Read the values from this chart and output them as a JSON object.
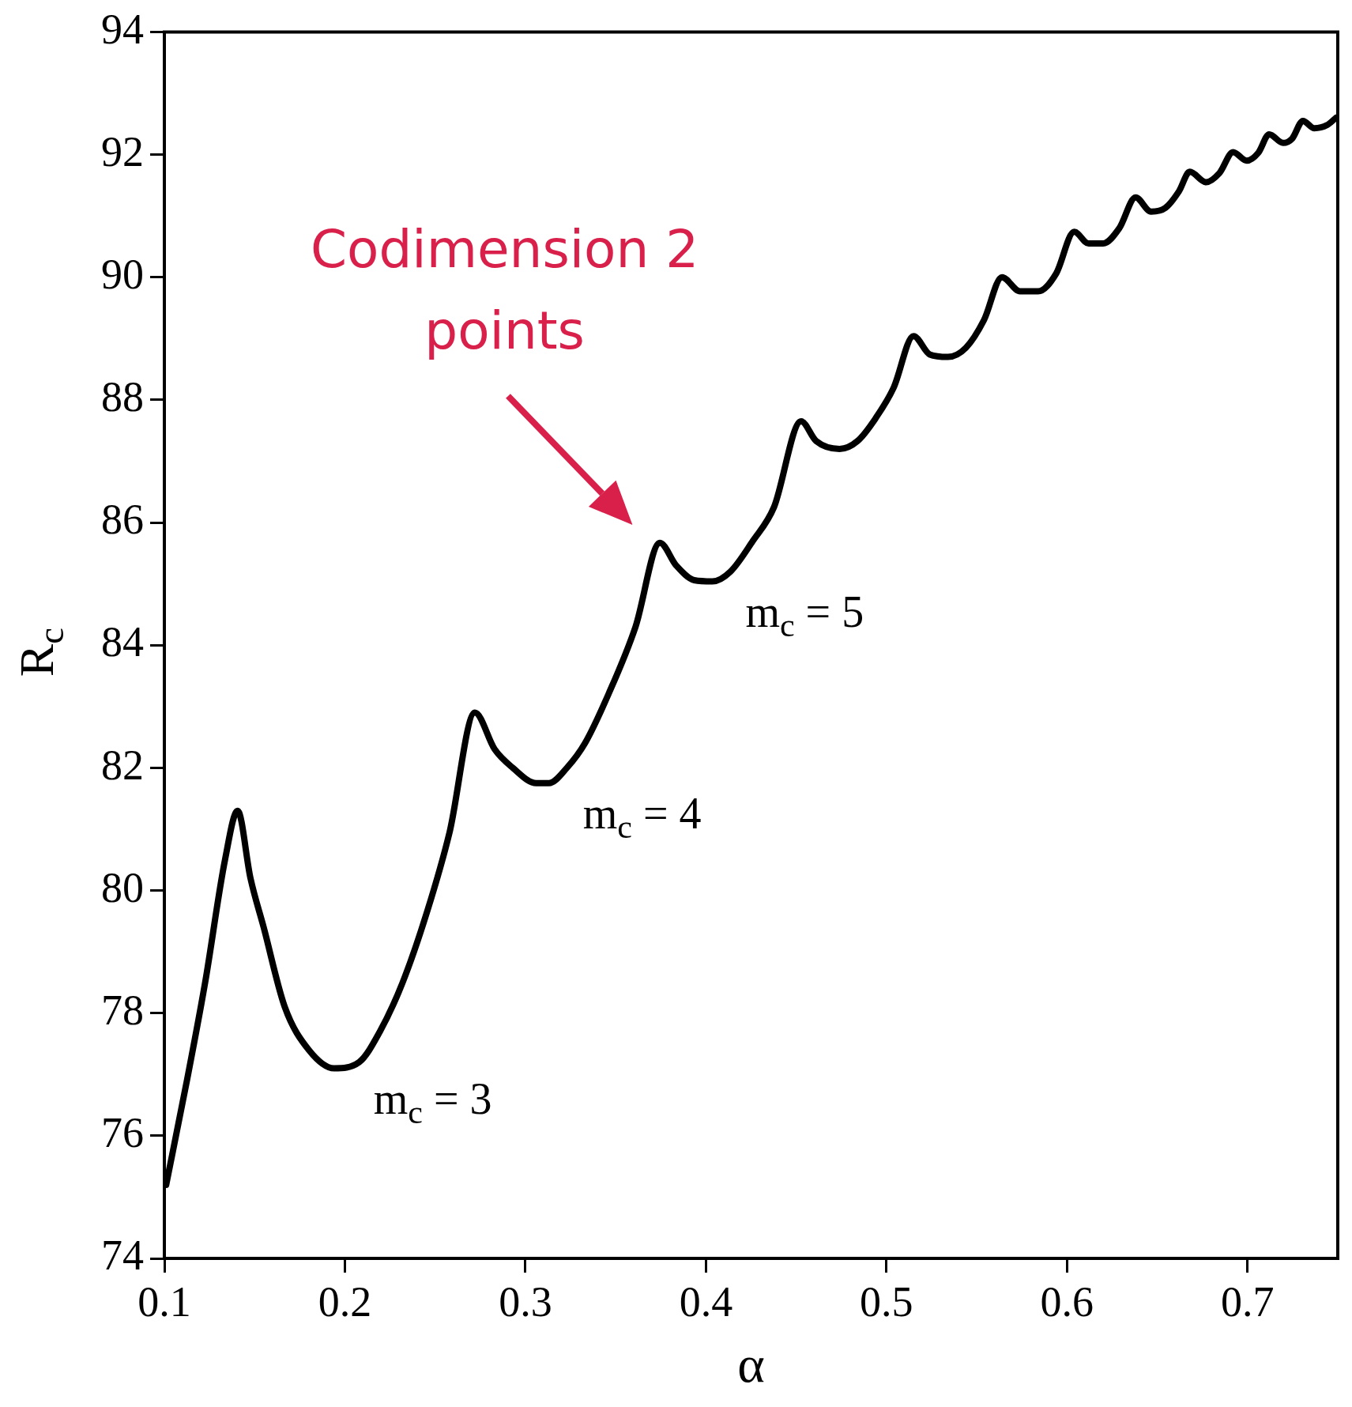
{
  "chart_data": {
    "type": "line",
    "xlabel": "α",
    "ylabel": "R$_{c}$",
    "xlim": [
      0.1,
      0.75
    ],
    "ylim": [
      74,
      94
    ],
    "xticks": [
      0.1,
      0.2,
      0.3,
      0.4,
      0.5,
      0.6,
      0.7
    ],
    "yticks": [
      74,
      76,
      78,
      80,
      82,
      84,
      86,
      88,
      90,
      92,
      94
    ],
    "grid": false,
    "legend": false,
    "marker": "none",
    "line_style": "solid",
    "x": [
      0.101,
      0.1125,
      0.1226,
      0.1336,
      0.1406,
      0.1477,
      0.155,
      0.1667,
      0.18,
      0.194,
      0.2079,
      0.2194,
      0.232,
      0.2455,
      0.258,
      0.272,
      0.283,
      0.293,
      0.306,
      0.313,
      0.323,
      0.333,
      0.346,
      0.361,
      0.3745,
      0.3835,
      0.3935,
      0.4036,
      0.4136,
      0.426,
      0.4377,
      0.4527,
      0.461,
      0.474,
      0.484,
      0.494,
      0.504,
      0.515,
      0.524,
      0.534,
      0.544,
      0.554,
      0.564,
      0.574,
      0.584,
      0.594,
      0.604,
      0.612,
      0.62,
      0.629,
      0.638,
      0.6466,
      0.6545,
      0.662,
      0.668,
      0.677,
      0.6845,
      0.692,
      0.6996,
      0.706,
      0.712,
      0.7197,
      0.7247,
      0.7307,
      0.737,
      0.744,
      0.749
    ],
    "series": [
      {
        "color": "#000000",
        "values": [
          75.2,
          76.9,
          78.5,
          80.5,
          81.3,
          80.2,
          79.4,
          78.1,
          77.4,
          77.1,
          77.2,
          77.7,
          78.5,
          79.65,
          80.95,
          82.9,
          82.3,
          82.0,
          81.75,
          81.75,
          82.0,
          82.4,
          83.2,
          84.3,
          85.67,
          85.3,
          85.06,
          85.04,
          85.2,
          85.7,
          86.25,
          87.65,
          87.33,
          87.2,
          87.33,
          87.7,
          88.2,
          89.04,
          88.74,
          88.7,
          88.85,
          89.3,
          90.0,
          89.77,
          89.77,
          90.06,
          90.74,
          90.55,
          90.55,
          90.8,
          91.3,
          91.07,
          91.13,
          91.4,
          91.72,
          91.55,
          91.7,
          92.04,
          91.9,
          92.03,
          92.33,
          92.19,
          92.26,
          92.55,
          92.43,
          92.48,
          92.6
        ]
      }
    ],
    "annotations": [
      "Codimension 2 points",
      {
        "text": "m$_{c}$ = 3",
        "x": 0.194,
        "y": 77.1
      },
      {
        "text": "m$_{c}$ = 4",
        "x": 0.31,
        "y": 81.75
      },
      {
        "text": "m$_{c}$ = 5",
        "x": 0.4,
        "y": 85.04
      }
    ]
  }
}
